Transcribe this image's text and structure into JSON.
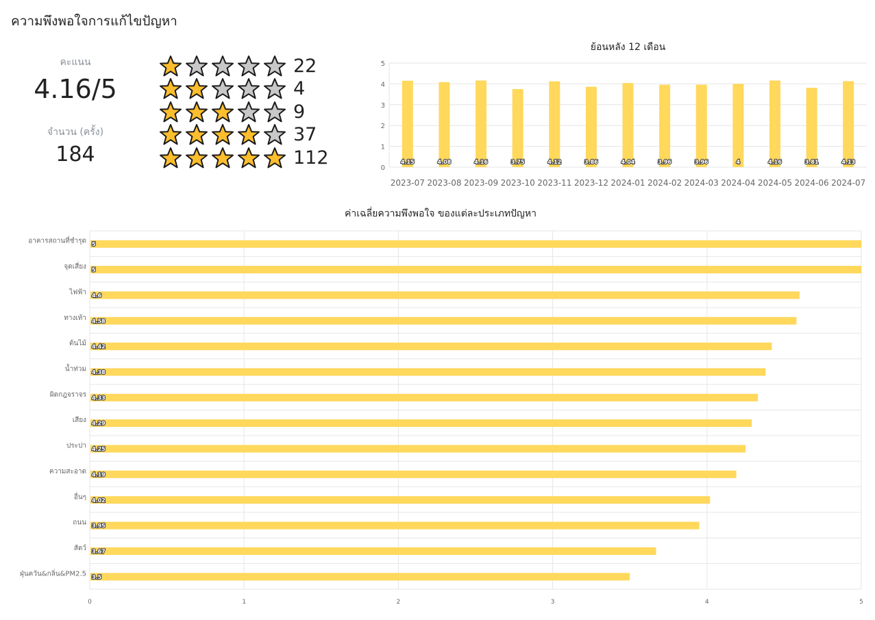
{
  "page": {
    "title": "ความพึงพอใจการแก้ไขปัญหา"
  },
  "summary": {
    "score_label": "คะแนน",
    "score_value": "4.16/5",
    "count_label": "จำนวน (ครั้ง)",
    "count_value": "184"
  },
  "ratings": [
    {
      "stars": 1,
      "count": "22"
    },
    {
      "stars": 2,
      "count": "4"
    },
    {
      "stars": 3,
      "count": "9"
    },
    {
      "stars": 4,
      "count": "37"
    },
    {
      "stars": 5,
      "count": "112"
    }
  ],
  "colors": {
    "star_filled": "#FDBE2D",
    "star_empty": "#C8C8C8",
    "star_outline": "#1a1a1a",
    "bar": "#FFD85C",
    "grid": "#E6E6E6",
    "axis_text": "#666666"
  },
  "chart_data": [
    {
      "type": "bar",
      "title": "ย้อนหลัง 12 เดือน",
      "categories": [
        "2023-07",
        "2023-08",
        "2023-09",
        "2023-10",
        "2023-11",
        "2023-12",
        "2024-01",
        "2024-02",
        "2024-03",
        "2024-04",
        "2024-05",
        "2024-06",
        "2024-07"
      ],
      "values": [
        4.15,
        4.08,
        4.16,
        3.75,
        4.12,
        3.86,
        4.04,
        3.96,
        3.96,
        4,
        4.16,
        3.81,
        4.13
      ],
      "value_labels": [
        "4.15",
        "4.08",
        "4.16",
        "3.75",
        "4.12",
        "3.86",
        "4.04",
        "3.96",
        "3.96",
        "4",
        "4.16",
        "3.81",
        "4.13"
      ],
      "ylim": [
        0,
        5
      ],
      "yticks": [
        "0",
        "1",
        "2",
        "3",
        "4",
        "5"
      ],
      "grid": true
    },
    {
      "type": "bar",
      "orientation": "horizontal",
      "title": "ค่าเฉลี่ยความพึงพอใจ ของแต่ละประเภทปัญหา",
      "categories": [
        "อาคารสถานที่ชำรุด",
        "จุดเสี่ยง",
        "ไฟฟ้า",
        "ทางเท้า",
        "ต้นไม้",
        "น้ำท่วม",
        "ผิดกฎจราจร",
        "เสียง",
        "ประปา",
        "ความสะอาด",
        "อื่นๆ",
        "ถนน",
        "สัตว์",
        "ฝุ่นควัน&กลิ่น&PM2.5"
      ],
      "values": [
        5,
        5,
        4.6,
        4.58,
        4.42,
        4.38,
        4.33,
        4.29,
        4.25,
        4.19,
        4.02,
        3.95,
        3.67,
        3.5
      ],
      "value_labels": [
        "5",
        "5",
        "4.6",
        "4.58",
        "4.42",
        "4.38",
        "4.33",
        "4.29",
        "4.25",
        "4.19",
        "4.02",
        "3.95",
        "3.67",
        "3.5"
      ],
      "xlim": [
        0,
        5
      ],
      "xticks": [
        "0",
        "1",
        "2",
        "3",
        "4",
        "5"
      ],
      "grid": true
    }
  ]
}
